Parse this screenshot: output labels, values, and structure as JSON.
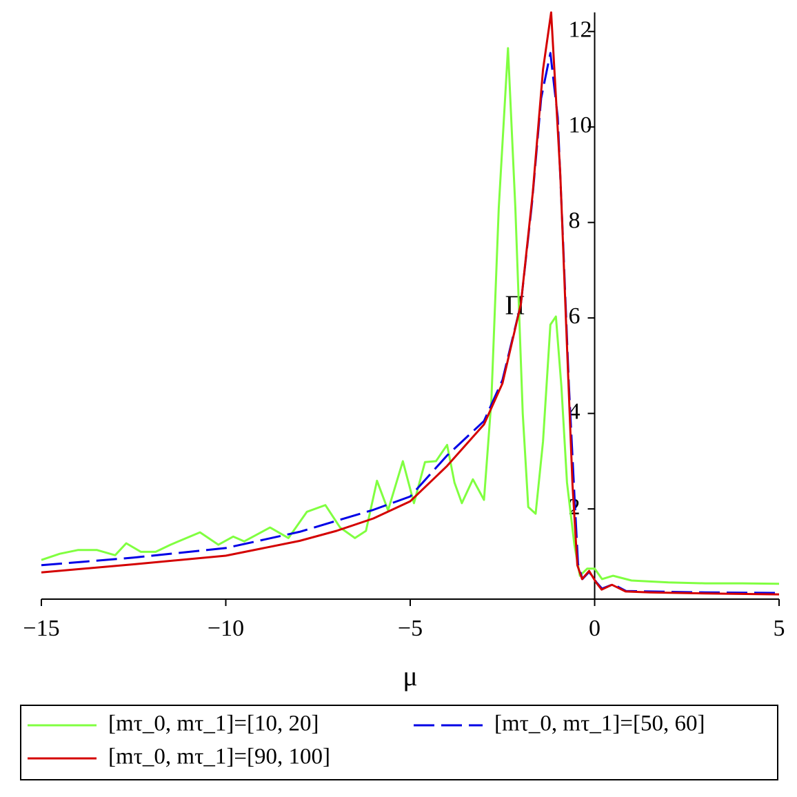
{
  "chart_data": {
    "type": "line",
    "x_label": "μ",
    "y_label": "Π",
    "xlim": [
      -15,
      5
    ],
    "ylim": [
      0.11,
      12.4
    ],
    "xticks": [
      {
        "value": -15,
        "label": "−15"
      },
      {
        "value": -10,
        "label": "−10"
      },
      {
        "value": -5,
        "label": "−5"
      },
      0,
      5
    ],
    "yticks": [
      2,
      4,
      6,
      8,
      10,
      12
    ],
    "series": [
      {
        "name": "[mτ_0, mτ_1]=[10, 20]",
        "color": "#80ff40",
        "dash": false,
        "x": [
          -15,
          -14.5,
          -14,
          -13.5,
          -13,
          -12.7,
          -12.3,
          -11.9,
          -11.5,
          -10.7,
          -10.2,
          -9.8,
          -9.5,
          -8.8,
          -8.3,
          -7.8,
          -7.3,
          -6.9,
          -6.5,
          -6.2,
          -5.9,
          -5.6,
          -5.2,
          -4.9,
          -4.6,
          -4.3,
          -4.0,
          -3.8,
          -3.6,
          -3.3,
          -3.0,
          -2.8,
          -2.6,
          -2.35,
          -2.15,
          -1.95,
          -1.8,
          -1.6,
          -1.4,
          -1.2,
          -1.05,
          -0.9,
          -0.75,
          -0.55,
          -0.4,
          -0.2,
          0,
          0.2,
          0.5,
          1,
          2,
          3,
          4,
          5
        ],
        "values": [
          0.93,
          1.06,
          1.14,
          1.14,
          1.03,
          1.28,
          1.1,
          1.1,
          1.25,
          1.51,
          1.25,
          1.42,
          1.32,
          1.61,
          1.39,
          1.94,
          2.08,
          1.61,
          1.39,
          1.54,
          2.59,
          1.97,
          3.0,
          2.12,
          2.98,
          3.0,
          3.34,
          2.55,
          2.12,
          2.62,
          2.19,
          4.27,
          8.3,
          11.65,
          8.3,
          4.0,
          2.04,
          1.9,
          3.41,
          5.86,
          6.03,
          4.56,
          2.55,
          1.25,
          0.6,
          0.75,
          0.75,
          0.53,
          0.6,
          0.5,
          0.46,
          0.44,
          0.44,
          0.43
        ]
      },
      {
        "name": "[mτ_0, mτ_1]=[50, 60]",
        "color": "#0000e6",
        "dash": true,
        "x": [
          -15,
          -12.5,
          -10,
          -8,
          -6,
          -5,
          -4,
          -3,
          -2.5,
          -2,
          -1.7,
          -1.45,
          -1.2,
          -1.0,
          -0.85,
          -0.7,
          -0.55,
          -0.45,
          -0.33,
          -0.15,
          0.05,
          0.2,
          0.5,
          0.85,
          1.5,
          3,
          5
        ],
        "values": [
          0.82,
          0.98,
          1.18,
          1.52,
          1.98,
          2.26,
          3.12,
          3.84,
          4.7,
          6.29,
          8.4,
          10.6,
          11.55,
          10.2,
          7.5,
          4.6,
          2.3,
          0.85,
          0.53,
          0.68,
          0.46,
          0.33,
          0.42,
          0.28,
          0.27,
          0.25,
          0.24
        ]
      },
      {
        "name": "[mτ_0, mτ_1]=[90, 100]",
        "color": "#d40000",
        "dash": false,
        "x": [
          -15,
          -12.5,
          -10,
          -8,
          -7,
          -6,
          -5,
          -4,
          -3,
          -2.5,
          -2,
          -1.68,
          -1.4,
          -1.18,
          -0.93,
          -0.75,
          -0.6,
          -0.47,
          -0.34,
          -0.15,
          0.04,
          0.19,
          0.47,
          0.84,
          1.5,
          3,
          5
        ],
        "values": [
          0.67,
          0.84,
          1.02,
          1.33,
          1.54,
          1.8,
          2.16,
          2.9,
          3.77,
          4.63,
          6.29,
          8.6,
          11.2,
          12.4,
          9.0,
          5.4,
          2.5,
          0.82,
          0.53,
          0.7,
          0.46,
          0.31,
          0.41,
          0.27,
          0.25,
          0.23,
          0.21
        ]
      }
    ]
  }
}
